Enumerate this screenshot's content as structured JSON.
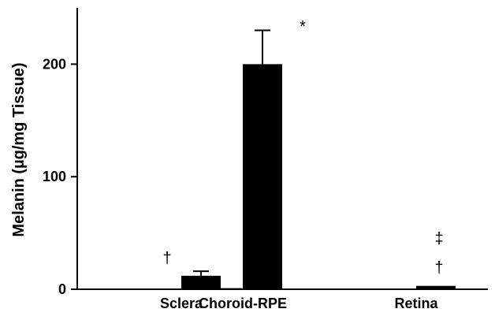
{
  "chart_data": {
    "type": "bar",
    "xlabel": "",
    "ylabel": "Melanin (µg/mg Tissue)",
    "ylim": [
      0,
      250
    ],
    "yticks": [
      0,
      100,
      200
    ],
    "ytick_labels": [
      "0",
      "100",
      "200"
    ],
    "grid": false,
    "legend": "none",
    "categories": [
      "Sclera",
      "Choroid-RPE",
      "Retina"
    ],
    "series": [
      {
        "values": [
          0,
          1,
          0
        ],
        "errors": [
          0,
          0,
          0
        ],
        "color": "#000000"
      },
      {
        "values": [
          12,
          200,
          3
        ],
        "errors": [
          4,
          30,
          0
        ],
        "color": "#000000"
      }
    ],
    "annotations": [
      {
        "category": "Sclera",
        "text": "†"
      },
      {
        "category": "Choroid-RPE",
        "text": "*"
      },
      {
        "category": "Retina",
        "text": "‡"
      },
      {
        "category": "Retina",
        "text": "†"
      }
    ]
  }
}
